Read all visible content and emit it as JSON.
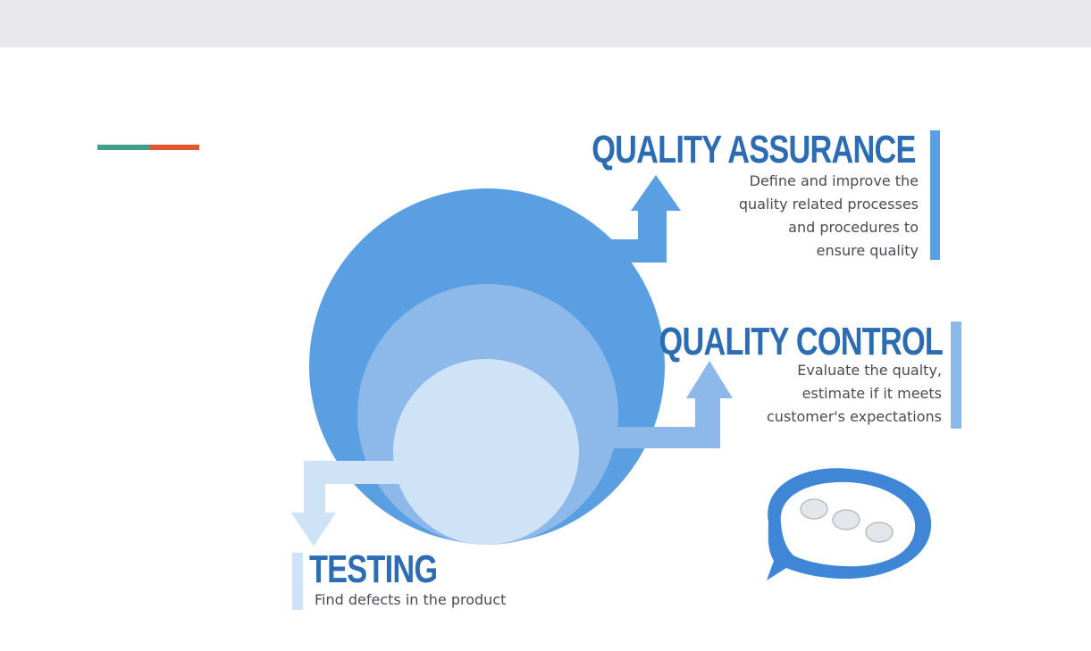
{
  "diagram": {
    "quality_assurance": {
      "title": "QUALITY ASSURANCE",
      "description": [
        "Define and improve the",
        "quality related processes",
        "and procedures to",
        "ensure quality"
      ]
    },
    "quality_control": {
      "title": "QUALITY CONTROL",
      "description": [
        "Evaluate the qualty,",
        "estimate if it meets",
        "customer's expectations"
      ]
    },
    "testing": {
      "title": "TESTING",
      "description": [
        "Find defects in the product"
      ]
    }
  },
  "colors": {
    "outer_circle": "#5b9fe3",
    "middle_circle": "#8cb9ea",
    "inner_circle": "#cfe3f7",
    "heading": "#2b6cb3",
    "accent_teal": "#3f9e8c",
    "accent_orange": "#e0582c"
  },
  "icons": {
    "speech_bubble": "chat-bubble-icon"
  }
}
